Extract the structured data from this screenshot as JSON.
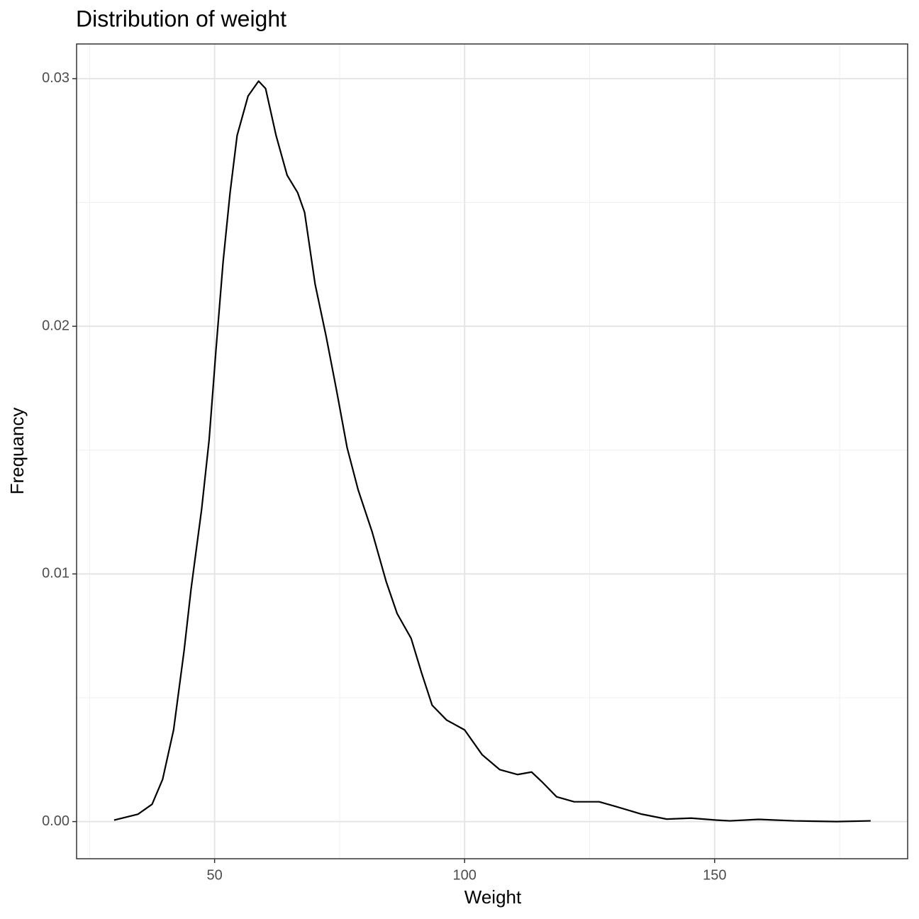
{
  "chart_data": {
    "type": "line",
    "title": "Distribution of weight",
    "x_label": "Weight",
    "y_label": "Frequancy",
    "x": [
      29.9,
      34.7,
      37.5,
      39.6,
      41.8,
      43.9,
      45.3,
      47.4,
      48.9,
      50.3,
      51.7,
      53.1,
      54.5,
      56.7,
      58.8,
      60.2,
      62.3,
      64.5,
      66.6,
      68.0,
      70.1,
      72.3,
      74.4,
      76.5,
      78.7,
      81.5,
      84.3,
      86.5,
      89.3,
      91.4,
      93.5,
      96.4,
      100,
      103.5,
      107,
      110.6,
      113.4,
      115.5,
      118.4,
      121.9,
      126.9,
      130.4,
      135.4,
      140.4,
      145.3,
      150.3,
      153.1,
      158.8,
      165.9,
      174.4,
      181.2
    ],
    "values": [
      6e-05,
      0.0003,
      0.0007,
      0.0017,
      0.0037,
      0.0069,
      0.0094,
      0.0126,
      0.0154,
      0.0191,
      0.0226,
      0.0254,
      0.0277,
      0.0293,
      0.0299,
      0.0296,
      0.0277,
      0.0261,
      0.0254,
      0.0246,
      0.0217,
      0.0196,
      0.0174,
      0.0151,
      0.0134,
      0.0117,
      0.0097,
      0.0084,
      0.0074,
      0.006,
      0.0047,
      0.0041,
      0.0037,
      0.0027,
      0.0021,
      0.0019,
      0.002,
      0.0016,
      0.001,
      0.0008,
      0.0008,
      0.0006,
      0.0003,
      0.0001,
      0.00014,
      6e-05,
      3e-05,
      9e-05,
      3e-05,
      0,
      3e-05
    ],
    "color": "#000000",
    "xlim": [
      22.4,
      188.6
    ],
    "ylim": [
      -0.0015,
      0.0314
    ],
    "xticks": [
      50,
      100,
      150
    ],
    "yticks": [
      {
        "value": 0,
        "label": "0.00"
      },
      0.01,
      0.02,
      0.03
    ],
    "xminor": [
      25,
      75,
      125,
      175
    ],
    "yminor": [
      0.005,
      0.015,
      0.025
    ],
    "grid": true
  }
}
